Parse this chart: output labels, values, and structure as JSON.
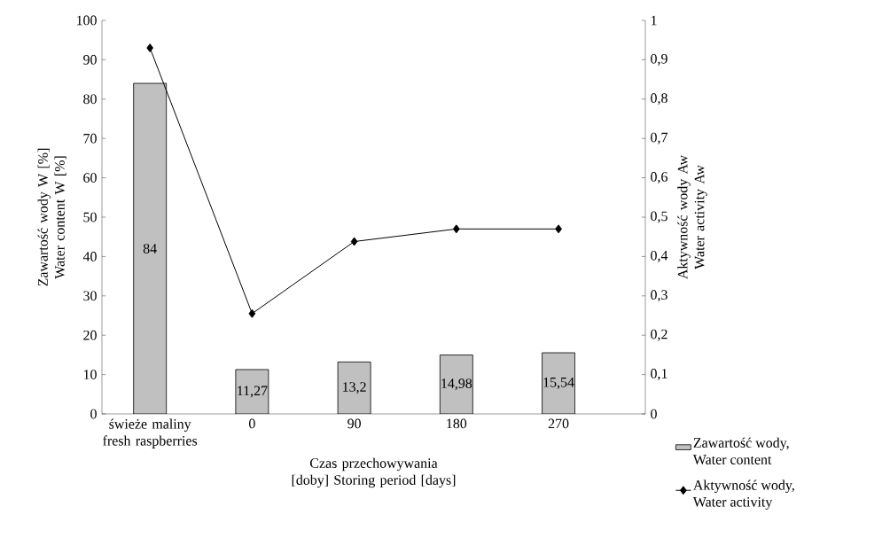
{
  "chart_data": {
    "type": "bar",
    "categories": [
      "świeże maliny fresh raspberries",
      "0",
      "90",
      "180",
      "270"
    ],
    "xlabel": "Czas przechowywania [doby] Storing period [days]",
    "ylabel": "Zawartość wody W [%] Water content W [%]",
    "y2label": "Aktywność wody Aw Water activity Aw",
    "series": [
      {
        "name": "Zawartość wody, Water content",
        "color": "#c0c0c0",
        "values": [
          84,
          11.27,
          13.2,
          14.98,
          15.54
        ],
        "value_labels": [
          "84",
          "11,27",
          "13,2",
          "14,98",
          "15,54"
        ]
      },
      {
        "name": "Aktywność wody, Water activity",
        "type": "line",
        "axis": "y2",
        "color": "#000000",
        "marker": "diamond",
        "values": [
          0.93,
          0.255,
          0.438,
          0.47,
          0.47
        ]
      }
    ],
    "ylim": [
      0,
      100
    ],
    "yticks": [
      0,
      10,
      20,
      30,
      40,
      50,
      60,
      70,
      80,
      90,
      100
    ],
    "y2lim": [
      0,
      1
    ],
    "y2ticks": [
      0,
      {
        "value": 0.1,
        "label": "0,1"
      },
      {
        "value": 0.2,
        "label": "0,2"
      },
      {
        "value": 0.3,
        "label": "0,3"
      },
      {
        "value": 0.4,
        "label": "0,4"
      },
      {
        "value": 0.5,
        "label": "0,5"
      },
      {
        "value": 0.6,
        "label": "0,6"
      },
      {
        "value": 0.7,
        "label": "0,7"
      },
      {
        "value": 0.8,
        "label": "0,8"
      },
      {
        "value": 0.9,
        "label": "0,9"
      },
      1
    ],
    "grid": false,
    "legend": "right"
  }
}
